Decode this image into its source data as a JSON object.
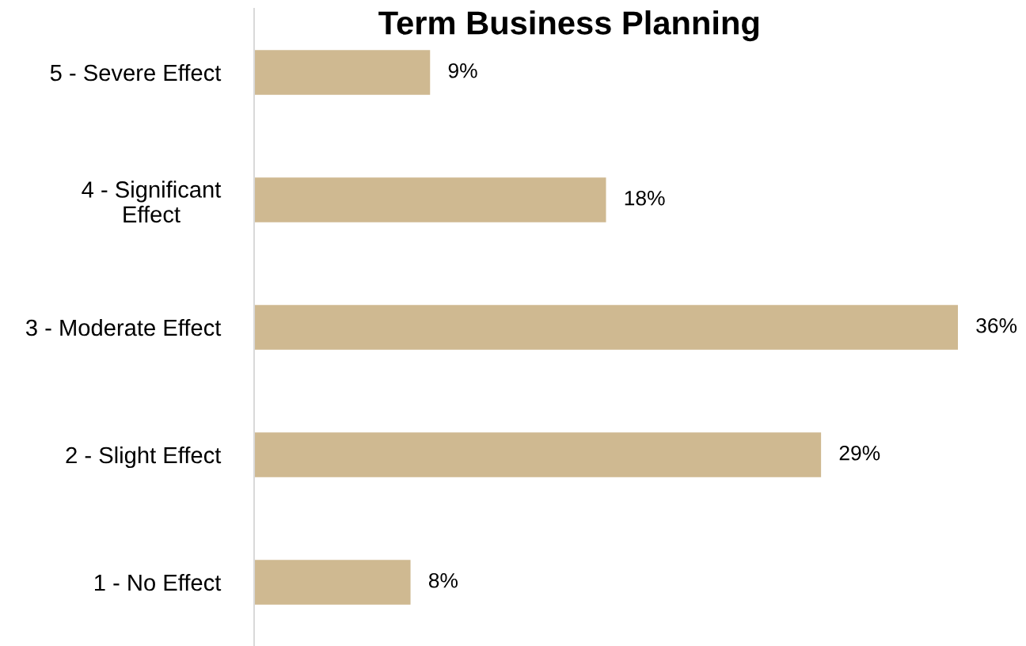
{
  "chart_data": {
    "type": "bar",
    "orientation": "horizontal",
    "title": "Term Business Planning",
    "categories": [
      "5 - Severe Effect",
      "4 - Significant Effect",
      "3 - Moderate Effect",
      "2 - Slight Effect",
      "1 - No Effect"
    ],
    "values": [
      9,
      18,
      36,
      29,
      8
    ],
    "value_labels": [
      "9%",
      "18%",
      "36%",
      "29%",
      "8%"
    ],
    "color": "#cfb991",
    "grid": false,
    "legend": false
  }
}
